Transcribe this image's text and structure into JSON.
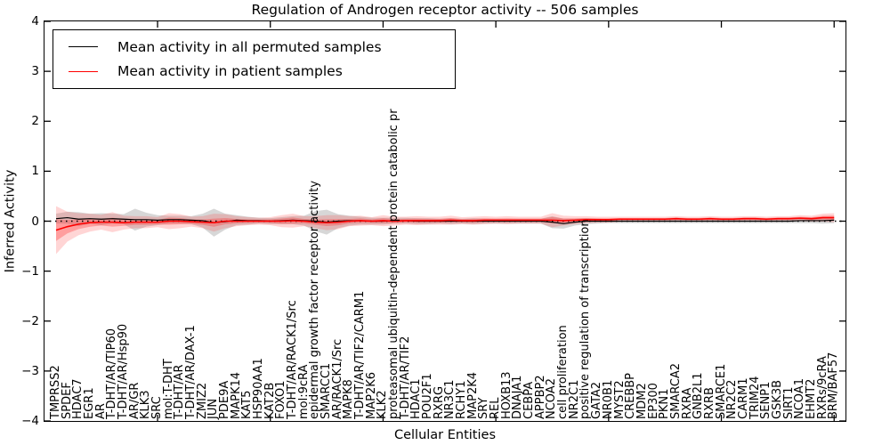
{
  "title": "Regulation of Androgen receptor activity -- 506 samples",
  "legend": {
    "items": [
      {
        "label": "Mean activity in all permuted samples",
        "color": "#000000"
      },
      {
        "label": "Mean activity in patient samples",
        "color": "#ff0000"
      }
    ]
  },
  "chart_data": {
    "type": "line",
    "title": "Regulation of Androgen receptor activity -- 506 samples",
    "xlabel": "Cellular Entities",
    "ylabel": "Inferred Activity",
    "ylim": [
      -4,
      4
    ],
    "yticks": [
      4,
      3,
      2,
      1,
      0,
      -1,
      -2,
      -3,
      -4
    ],
    "yticklabels": [
      "4",
      "3",
      "2",
      "1",
      "0",
      "−1",
      "−2",
      "−3",
      "−4"
    ],
    "grid": false,
    "legend_position": "upper left",
    "zero_line": {
      "y": 0,
      "style": "dotted",
      "color": "#000000"
    },
    "xtick_indices": [
      9,
      19,
      29,
      39,
      49,
      59,
      69
    ],
    "categories": [
      "TMPRSS2",
      "SPDEF",
      "HDAC7",
      "EGR1",
      "AR",
      "T-DHT/AR/TIP60",
      "T-DHT/AR/Hsp90",
      "AR/GR",
      "KLK3",
      "SRC",
      "mol:T-DHT",
      "T-DHT/AR",
      "T-DHT/AR/DAX-1",
      "ZMIZ2",
      "JUN",
      "PDE9A",
      "MAPK14",
      "KAT5",
      "HSP90AA1",
      "KAT2B",
      "FOXO1",
      "T-DHT/AR/RACK1/Src",
      "mol:9cRA",
      "epidermal growth factor receptor activity",
      "SMARCC1",
      "AR/RACK1/Src",
      "MAPK8",
      "T-DHT/AR/TIF2/CARM1",
      "MAP2K6",
      "KLK2",
      "proteasomal ubiquitin-dependent protein catabolic pr",
      "T-DHT/AR/TIF2",
      "HDAC1",
      "POU2F1",
      "RXRG",
      "NR3C1",
      "RCHY1",
      "MAP2K4",
      "SRY",
      "REL",
      "HOXB13",
      "DNAJA1",
      "CEBPA",
      "APPBP2",
      "NCOA2",
      "cell proliferation",
      "NR2C1",
      "positive regulation of transcription",
      "GATA2",
      "NR0B1",
      "MYST2",
      "CREBBP",
      "MDM2",
      "EP300",
      "PKN1",
      "SMARCA2",
      "RXRA",
      "GNB2L1",
      "RXRB",
      "SMARCE1",
      "NR2C2",
      "CARM1",
      "TRIM24",
      "SENP1",
      "GSK3B",
      "SIRT1",
      "NCOA1",
      "EHMT2",
      "RXRs/9cRA",
      "BRM/BAF57"
    ],
    "series": [
      {
        "name": "Mean activity in all permuted samples",
        "color": "#000000",
        "band_color": "rgba(130,130,130,0.32)",
        "values": [
          0.05,
          0.07,
          0.04,
          0.05,
          0.04,
          0.05,
          0.04,
          0.03,
          0.03,
          0.02,
          0.03,
          0.03,
          0.02,
          0.01,
          -0.03,
          -0.01,
          0.02,
          0.01,
          0.01,
          0,
          0.01,
          0.02,
          0.01,
          0,
          -0.02,
          0,
          0.01,
          0.01,
          0,
          0,
          0.01,
          0.01,
          0,
          0,
          0,
          0,
          0,
          0,
          0,
          0,
          0,
          0,
          0,
          0,
          -0.02,
          -0.05,
          -0.02,
          0,
          0,
          0,
          0,
          0,
          0,
          0,
          0,
          0,
          0,
          0,
          0,
          0,
          0,
          0,
          0,
          0,
          0,
          0,
          0.01,
          0.01,
          0.01,
          0.02
        ],
        "band_halfwidth": [
          0.1,
          0.12,
          0.14,
          0.1,
          0.12,
          0.1,
          0.1,
          0.22,
          0.14,
          0.1,
          0.08,
          0.08,
          0.08,
          0.14,
          0.28,
          0.16,
          0.1,
          0.08,
          0.06,
          0.06,
          0.07,
          0.08,
          0.1,
          0.2,
          0.25,
          0.14,
          0.1,
          0.08,
          0.07,
          0.07,
          0.06,
          0.06,
          0.06,
          0.06,
          0.05,
          0.06,
          0.05,
          0.06,
          0.05,
          0.05,
          0.05,
          0.05,
          0.05,
          0.05,
          0.12,
          0.1,
          0.07,
          0.06,
          0.05,
          0.04,
          0.04,
          0.04,
          0.04,
          0.04,
          0.04,
          0.04,
          0.04,
          0.04,
          0.04,
          0.04,
          0.04,
          0.04,
          0.04,
          0.04,
          0.04,
          0.04,
          0.05,
          0.05,
          0.06,
          0.06
        ]
      },
      {
        "name": "Mean activity in patient samples",
        "color": "#ff0000",
        "band_color": "rgba(255,45,45,0.20)",
        "band_inner_color": "rgba(255,45,45,0.32)",
        "values": [
          -0.18,
          -0.11,
          -0.06,
          -0.03,
          -0.02,
          -0.02,
          -0.03,
          -0.02,
          -0.02,
          -0.02,
          0,
          0,
          -0.01,
          -0.02,
          -0.03,
          0,
          0,
          0,
          0,
          0,
          0,
          0.01,
          0,
          -0.02,
          -0.03,
          -0.02,
          0,
          0.01,
          0,
          0.01,
          0,
          0.01,
          0.01,
          0.01,
          0.01,
          0.02,
          0.01,
          0.01,
          0.02,
          0.02,
          0.02,
          0.02,
          0.02,
          0.02,
          0.02,
          0.01,
          0.02,
          0.03,
          0.03,
          0.03,
          0.04,
          0.04,
          0.04,
          0.04,
          0.04,
          0.05,
          0.04,
          0.04,
          0.05,
          0.04,
          0.04,
          0.05,
          0.05,
          0.04,
          0.05,
          0.05,
          0.06,
          0.05,
          0.07,
          0.07
        ],
        "band_halfwidth": [
          0.48,
          0.3,
          0.22,
          0.18,
          0.15,
          0.2,
          0.14,
          0.12,
          0.12,
          0.1,
          0.16,
          0.14,
          0.1,
          0.12,
          0.18,
          0.14,
          0.1,
          0.08,
          0.07,
          0.08,
          0.12,
          0.14,
          0.1,
          0.12,
          0.15,
          0.14,
          0.1,
          0.1,
          0.08,
          0.11,
          0.09,
          0.08,
          0.09,
          0.08,
          0.08,
          0.09,
          0.07,
          0.08,
          0.08,
          0.07,
          0.08,
          0.07,
          0.07,
          0.07,
          0.14,
          0.1,
          0.08,
          0.07,
          0.06,
          0.06,
          0.05,
          0.05,
          0.05,
          0.05,
          0.05,
          0.05,
          0.05,
          0.05,
          0.05,
          0.05,
          0.05,
          0.05,
          0.05,
          0.05,
          0.05,
          0.05,
          0.06,
          0.06,
          0.08,
          0.09
        ]
      }
    ]
  }
}
